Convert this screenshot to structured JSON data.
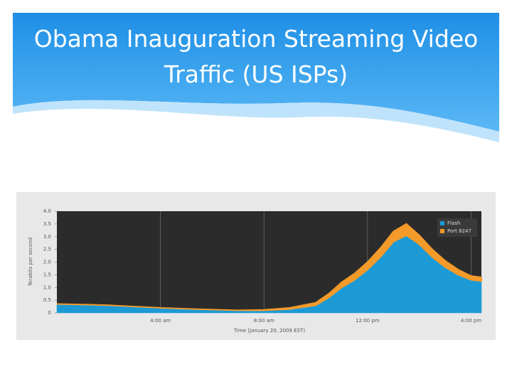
{
  "chart_data": {
    "type": "stacked-area",
    "title": "Obama Inauguration Streaming Video Traffic (US ISPs)",
    "x_label": "Time (January 20, 2009 EST)",
    "y_label": "Terabits per second",
    "x": [
      0,
      1,
      2,
      3,
      4,
      5,
      6,
      7,
      8,
      9,
      10,
      10.5,
      11,
      11.5,
      12,
      12.5,
      13,
      13.5,
      14,
      14.5,
      15,
      15.5,
      16,
      16.4
    ],
    "series": [
      {
        "name": "Flash",
        "color": "#1c9ad6",
        "values": [
          0.35,
          0.33,
          0.3,
          0.25,
          0.2,
          0.16,
          0.13,
          0.1,
          0.1,
          0.15,
          0.3,
          0.6,
          1.0,
          1.3,
          1.7,
          2.2,
          2.8,
          3.05,
          2.7,
          2.2,
          1.8,
          1.5,
          1.3,
          1.25
        ]
      },
      {
        "name": "Port 8247",
        "color": "#f39a2b",
        "values": [
          0,
          0,
          0,
          0,
          0,
          0,
          0,
          0,
          0.02,
          0.05,
          0.1,
          0.15,
          0.2,
          0.25,
          0.3,
          0.35,
          0.4,
          0.45,
          0.35,
          0.3,
          0.25,
          0.2,
          0.15,
          0.15
        ]
      }
    ],
    "xlim": [
      0,
      16.4
    ],
    "xticks": [
      {
        "value": 4,
        "label": "4:00 am"
      },
      {
        "value": 8,
        "label": "8:00 am"
      },
      {
        "value": 12,
        "label": "12:00 pm"
      },
      {
        "value": 16,
        "label": "4:00 pm"
      }
    ],
    "ylim": [
      0,
      4
    ],
    "yticks": [
      0,
      0.5,
      {
        "value": 1,
        "label": "1.0"
      },
      1.5,
      {
        "value": 2,
        "label": "2.0"
      },
      2.5,
      {
        "value": 3,
        "label": "3.0"
      },
      3.5,
      {
        "value": 4,
        "label": "4.0"
      }
    ],
    "grid": true,
    "legend": "top-right"
  }
}
